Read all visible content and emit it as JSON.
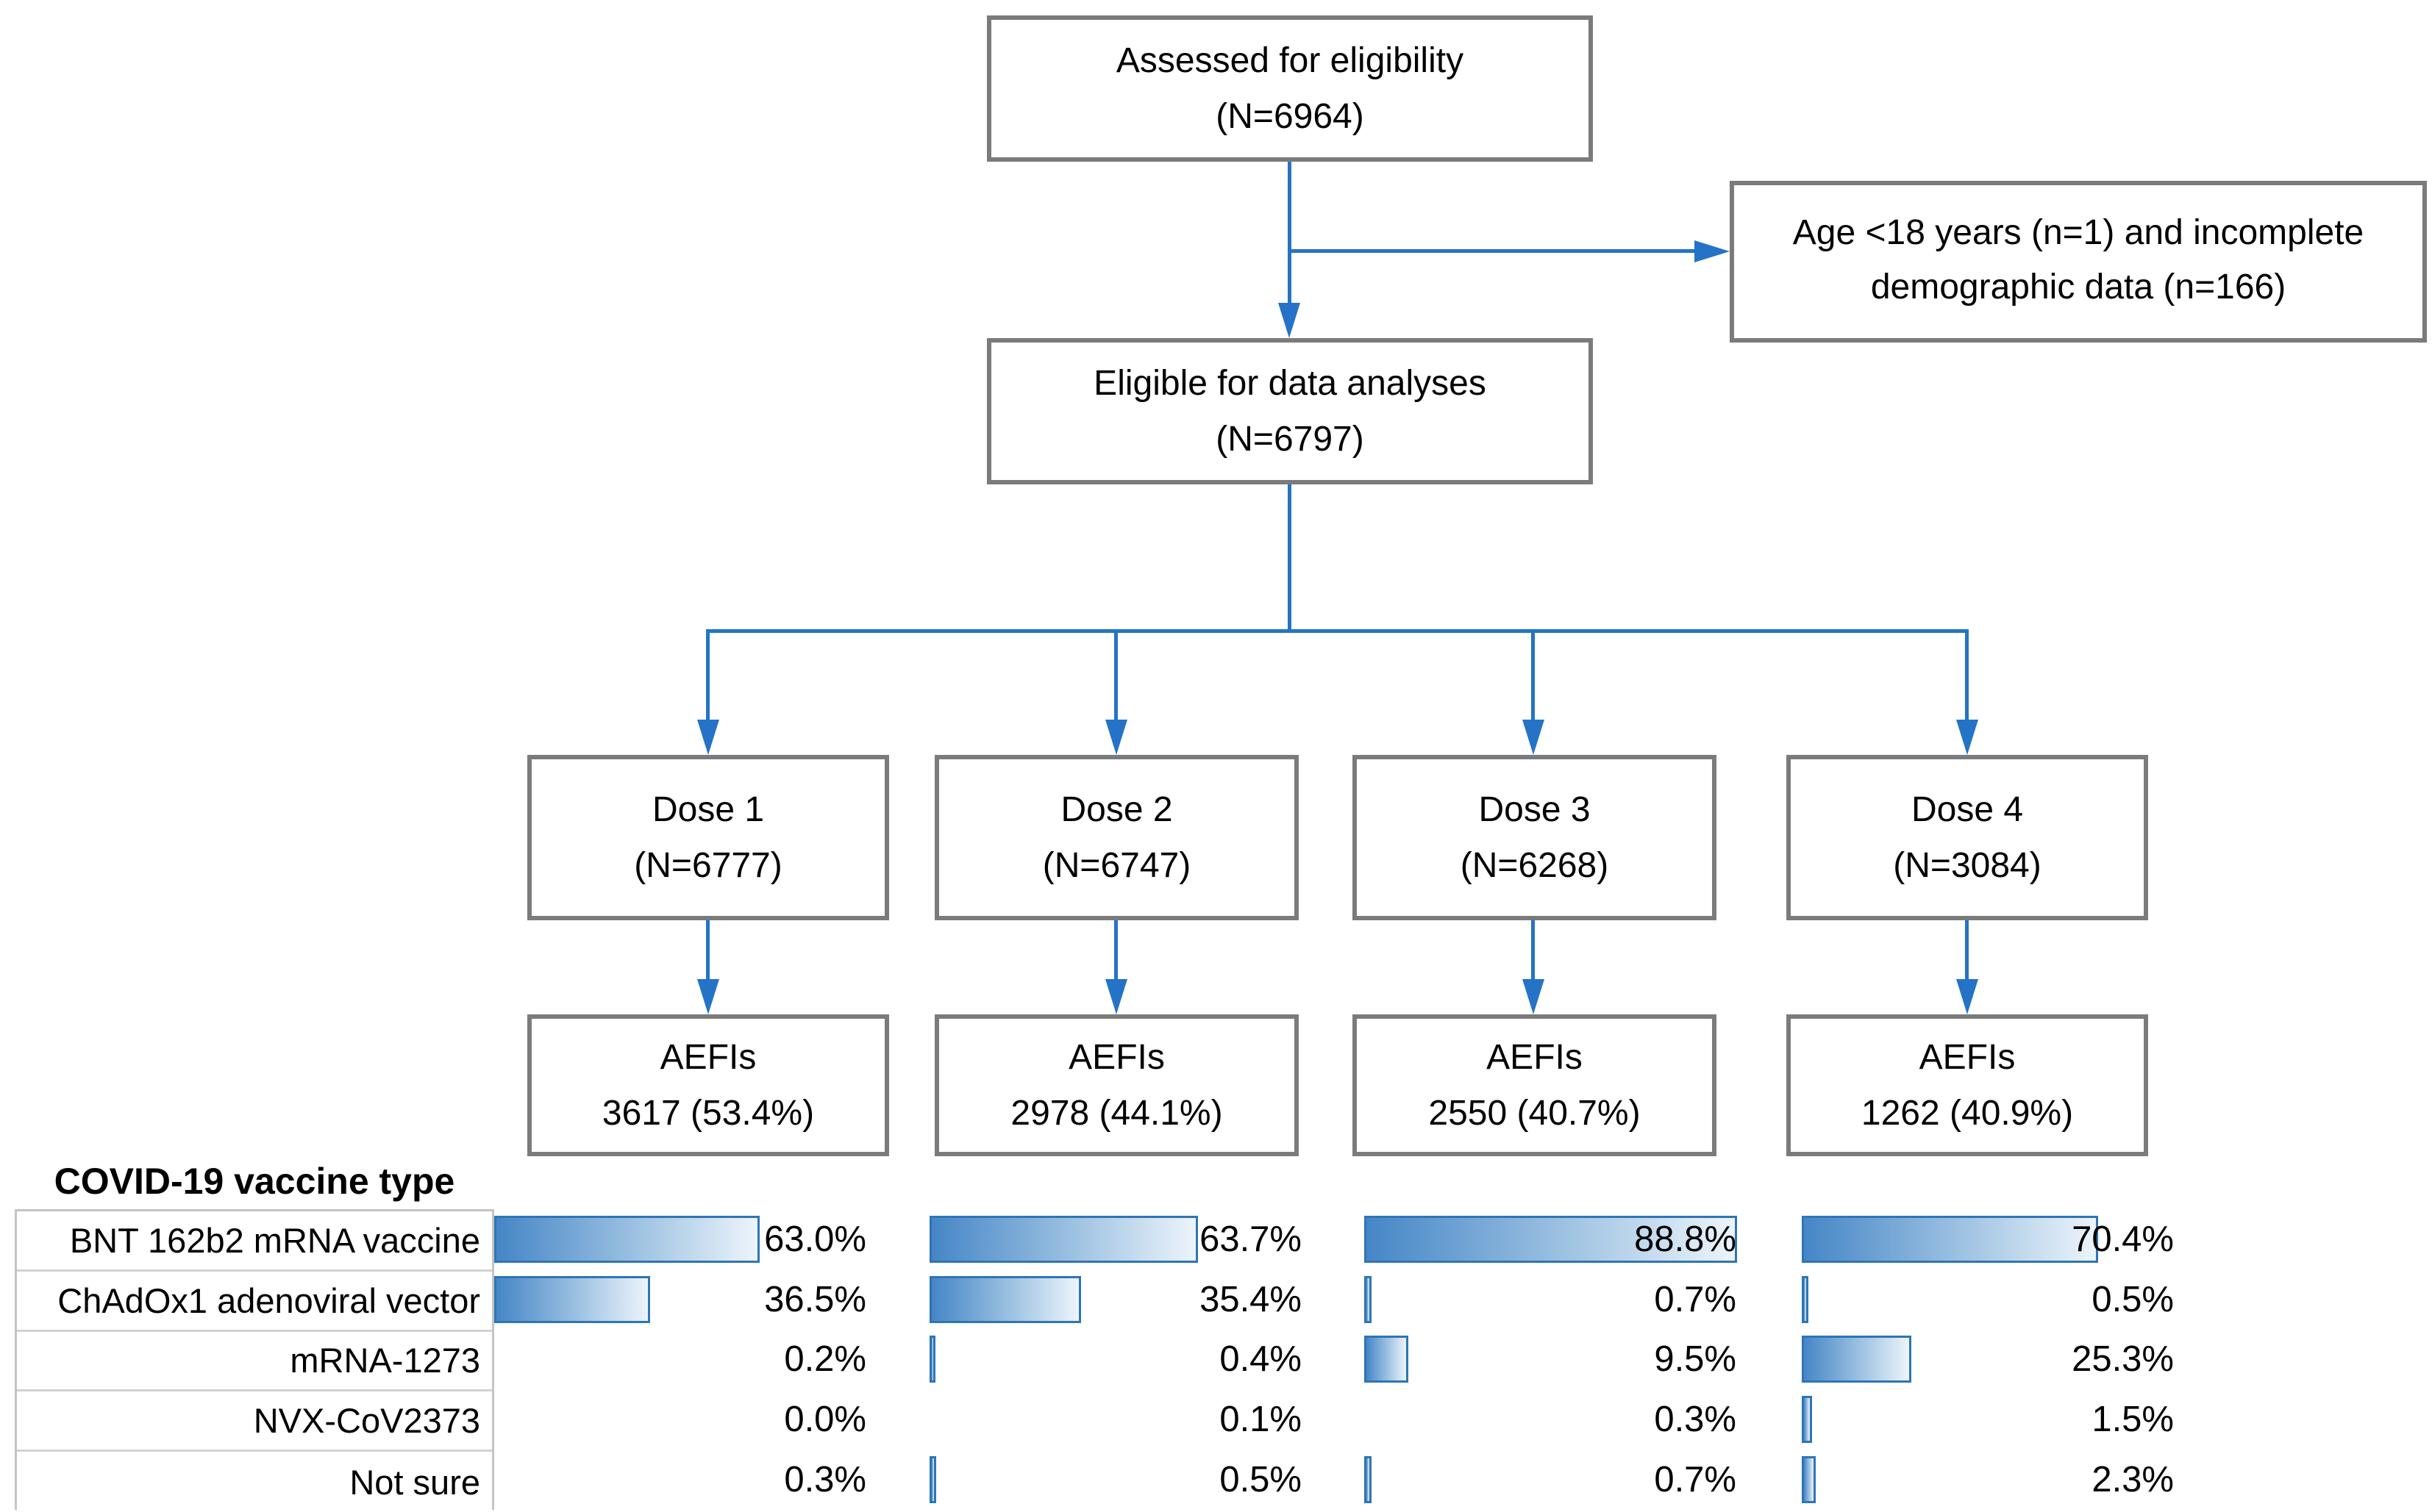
{
  "flowchart": {
    "assessed": {
      "line1": "Assessed for eligibility",
      "line2": "(N=6964)"
    },
    "excluded": {
      "text": "Age <18 years (n=1) and incomplete demographic data (n=166)"
    },
    "eligible": {
      "line1": "Eligible for data analyses",
      "line2": "(N=6797)"
    },
    "doses": [
      {
        "title": "Dose 1",
        "n": "(N=6777)",
        "aefi_label": "AEFIs",
        "aefi_value": "3617 (53.4%)"
      },
      {
        "title": "Dose 2",
        "n": "(N=6747)",
        "aefi_label": "AEFIs",
        "aefi_value": "2978 (44.1%)"
      },
      {
        "title": "Dose 3",
        "n": "(N=6268)",
        "aefi_label": "AEFIs",
        "aefi_value": "2550 (40.7%)"
      },
      {
        "title": "Dose 4",
        "n": "(N=3084)",
        "aefi_label": "AEFIs",
        "aefi_value": "1262 (40.9%)"
      }
    ]
  },
  "vaccine_table": {
    "title": "COVID-19 vaccine type",
    "rows": [
      "BNT 162b2 mRNA vaccine",
      "ChAdOx1 adenoviral vector",
      "mRNA-1273",
      "NVX-CoV2373",
      "Not sure"
    ]
  },
  "chart_data": {
    "type": "bar",
    "orientation": "horizontal",
    "title": "COVID-19 vaccine type",
    "categories": [
      "BNT 162b2 mRNA vaccine",
      "ChAdOx1 adenoviral vector",
      "mRNA-1273",
      "NVX-CoV2373",
      "Not sure"
    ],
    "series": [
      {
        "name": "Dose 1",
        "values": [
          63.0,
          36.5,
          0.2,
          0.0,
          0.3
        ],
        "labels": [
          "63.0%",
          "36.5%",
          "0.2%",
          "0.0%",
          "0.3%"
        ]
      },
      {
        "name": "Dose 2",
        "values": [
          63.7,
          35.4,
          0.4,
          0.1,
          0.5
        ],
        "labels": [
          "63.7%",
          "35.4%",
          "0.4%",
          "0.1%",
          "0.5%"
        ]
      },
      {
        "name": "Dose 3",
        "values": [
          88.8,
          0.7,
          9.5,
          0.3,
          0.7
        ],
        "labels": [
          "88.8%",
          "0.7%",
          "9.5%",
          "0.3%",
          "0.7%"
        ]
      },
      {
        "name": "Dose 4",
        "values": [
          70.4,
          0.5,
          25.3,
          1.5,
          2.3
        ],
        "labels": [
          "70.4%",
          "0.5%",
          "25.3%",
          "1.5%",
          "2.3%"
        ]
      }
    ],
    "xlim": [
      0,
      100
    ],
    "value_axis_visible": false,
    "data_labels": true,
    "bar_gradient": [
      "#4586c7",
      "#edf4fb"
    ],
    "bar_border_color": "#2e75b6"
  },
  "colors": {
    "connector_blue": "#2573c7",
    "box_border_gray": "#7b7b7b",
    "table_border_gray": "#d2d2d2"
  }
}
